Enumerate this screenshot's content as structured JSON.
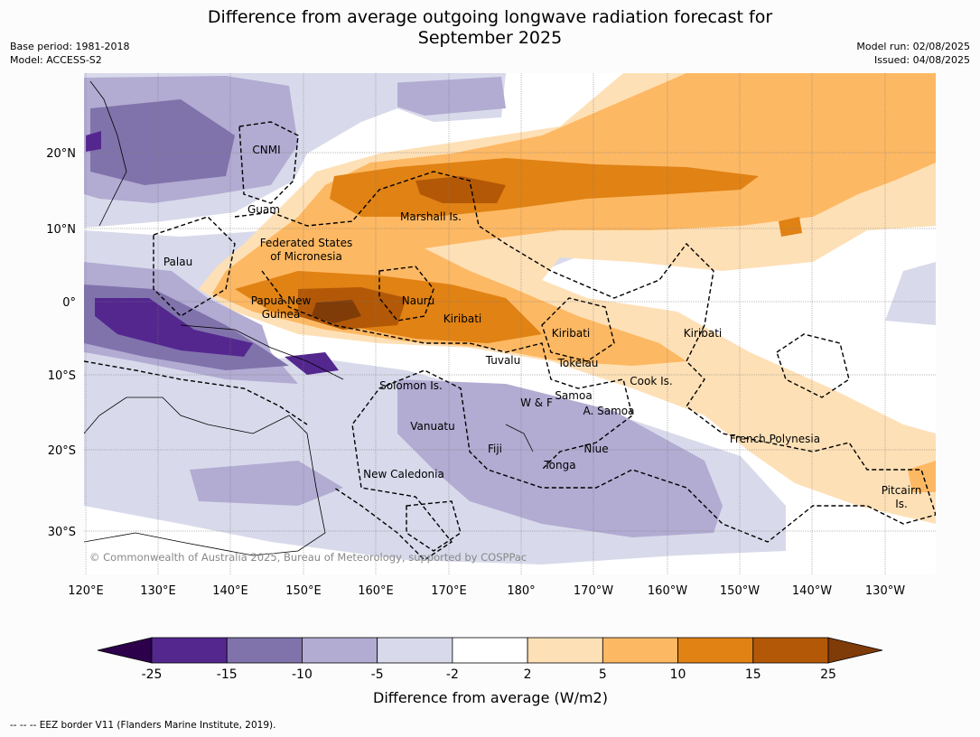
{
  "header": {
    "title_line1": "Difference from average outgoing longwave radiation forecast for",
    "title_line2": "September 2025",
    "base_period": "Base period: 1981-2018",
    "model": "Model: ACCESS-S2",
    "model_run": "Model run: 02/08/2025",
    "issued": "Issued: 04/08/2025"
  },
  "map": {
    "lat_labels": [
      "20°N",
      "10°N",
      "0°",
      "10°S",
      "20°S",
      "30°S"
    ],
    "lon_labels": [
      "120°E",
      "130°E",
      "140°E",
      "150°E",
      "160°E",
      "170°E",
      "180°",
      "170°W",
      "160°W",
      "150°W",
      "140°W",
      "130°W"
    ],
    "credit": "© Commonwealth of Australia 2025, Bureau of Meteorology, supported by COSPPac",
    "regions": [
      {
        "name": "CNMI"
      },
      {
        "name": "Guam"
      },
      {
        "name": "Palau"
      },
      {
        "name": "Federated States"
      },
      {
        "name": "of Micronesia"
      },
      {
        "name": "Marshall Is."
      },
      {
        "name": "Papua New"
      },
      {
        "name": "Guinea"
      },
      {
        "name": "Nauru"
      },
      {
        "name": "Kiribati"
      },
      {
        "name": "Kiribati"
      },
      {
        "name": "Kiribati"
      },
      {
        "name": "Tuvalu"
      },
      {
        "name": "Tokelau"
      },
      {
        "name": "Solomon Is."
      },
      {
        "name": "Cook Is."
      },
      {
        "name": "Samoa"
      },
      {
        "name": "W & F"
      },
      {
        "name": "A. Samoa"
      },
      {
        "name": "Vanuatu"
      },
      {
        "name": "Fiji"
      },
      {
        "name": "Niue"
      },
      {
        "name": "Tonga"
      },
      {
        "name": "French Polynesia"
      },
      {
        "name": "New Caledonia"
      },
      {
        "name": "Pitcairn"
      },
      {
        "name": "Is."
      }
    ]
  },
  "colorbar": {
    "ticks": [
      "-25",
      "-15",
      "-10",
      "-5",
      "-2",
      "2",
      "5",
      "10",
      "15",
      "25"
    ],
    "colors": [
      "#54278f",
      "#8073ac",
      "#b2abd2",
      "#d8daeb",
      "#ffffff",
      "#fee0b6",
      "#fdb863",
      "#e08214",
      "#b35806"
    ],
    "under_color": "#2d004b",
    "over_color": "#7f3b08",
    "label": "Difference from average (W/m2)"
  },
  "footnote": "--  --  -- EEZ border V11 (Flanders Marine Institute, 2019)."
}
